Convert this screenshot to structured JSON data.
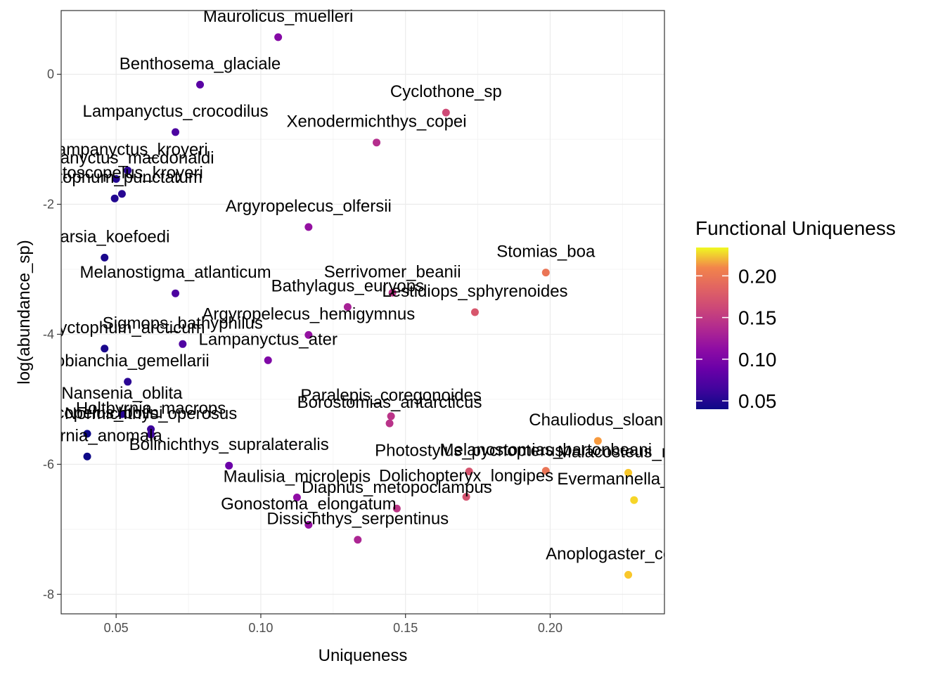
{
  "chart_data": {
    "type": "scatter",
    "xlabel": "Uniqueness",
    "ylabel": "log(abundance_sp)",
    "xlim": [
      0.031,
      0.2395
    ],
    "ylim": [
      -8.3,
      0.98
    ],
    "xticks": [
      0.05,
      0.1,
      0.15,
      0.2
    ],
    "xtick_labels": [
      "0.05",
      "0.10",
      "0.15",
      "0.20"
    ],
    "yticks": [
      -8,
      -6,
      -4,
      -2,
      0
    ],
    "ytick_labels": [
      "-8",
      "-6",
      "-4",
      "-2",
      "0"
    ],
    "grid": true,
    "legend": {
      "title": "Functional Uniqueness",
      "placement": "right",
      "ticks": [
        0.05,
        0.1,
        0.15,
        0.2
      ],
      "tick_labels": [
        "0.05",
        "0.10",
        "0.15",
        "0.20"
      ],
      "range": [
        0.04,
        0.234
      ]
    },
    "points": [
      {
        "label": "Maurolicus_muelleri",
        "x": 0.106,
        "y": 0.57,
        "color_value": 0.106
      },
      {
        "label": "Benthosema_glaciale",
        "x": 0.079,
        "y": -0.16,
        "color_value": 0.079
      },
      {
        "label": "Cyclothone_sp",
        "x": 0.164,
        "y": -0.59,
        "color_value": 0.164
      },
      {
        "label": "Lampanyctus_crocodilus",
        "x": 0.0705,
        "y": -0.89,
        "color_value": 0.0705
      },
      {
        "label": "Xenodermichthys_copei",
        "x": 0.14,
        "y": -1.05,
        "color_value": 0.14
      },
      {
        "label": "Lampanyctus_kroyeri",
        "x": 0.054,
        "y": -1.48,
        "color_value": 0.054
      },
      {
        "label": "Lampanyctus_macdonaldi",
        "x": 0.05,
        "y": -1.61,
        "color_value": 0.05
      },
      {
        "label": "Myctophum_punctatum",
        "x": 0.0495,
        "y": -1.91,
        "color_value": 0.0495
      },
      {
        "label": "Notoscopelus_kroyeri",
        "x": 0.052,
        "y": -1.84,
        "color_value": 0.052
      },
      {
        "label": "Argyropelecus_olfersii",
        "x": 0.1165,
        "y": -2.35,
        "color_value": 0.1165
      },
      {
        "label": "Searsia_koefoedi",
        "x": 0.046,
        "y": -2.82,
        "color_value": 0.046
      },
      {
        "label": "Stomias_boa",
        "x": 0.1985,
        "y": -3.05,
        "color_value": 0.1985
      },
      {
        "label": "Melanostigma_atlanticum",
        "x": 0.0705,
        "y": -3.37,
        "color_value": 0.0705
      },
      {
        "label": "Serrivomer_beanii",
        "x": 0.1455,
        "y": -3.36,
        "color_value": 0.1455
      },
      {
        "label": "Bathylagus_euryops",
        "x": 0.13,
        "y": -3.58,
        "color_value": 0.13
      },
      {
        "label": "Lestidiops_sphyrenoides",
        "x": 0.174,
        "y": -3.66,
        "color_value": 0.174
      },
      {
        "label": "Argyropelecus_hemigymnus",
        "x": 0.1165,
        "y": -4.01,
        "color_value": 0.1165
      },
      {
        "label": "Sigmops_bathyphilus",
        "x": 0.073,
        "y": -4.15,
        "color_value": 0.073
      },
      {
        "label": "Protomyctophum_arcticum",
        "x": 0.046,
        "y": -4.22,
        "color_value": 0.046
      },
      {
        "label": "Lampanyctus_ater",
        "x": 0.1025,
        "y": -4.4,
        "color_value": 0.1025
      },
      {
        "label": "Lobianchia_gemellarii",
        "x": 0.054,
        "y": -4.73,
        "color_value": 0.054
      },
      {
        "label": "Nansenia_oblita",
        "x": 0.052,
        "y": -5.23,
        "color_value": 0.052
      },
      {
        "label": "Paralepis_coregonoides",
        "x": 0.145,
        "y": -5.26,
        "color_value": 0.145
      },
      {
        "label": "Borostomias_antarcticus",
        "x": 0.1445,
        "y": -5.37,
        "color_value": 0.1445
      },
      {
        "label": "Holtbyrnia_macrops",
        "x": 0.062,
        "y": -5.46,
        "color_value": 0.062
      },
      {
        "label": "Normichthys_operosus",
        "x": 0.062,
        "y": -5.54,
        "color_value": 0.062
      },
      {
        "label": "Chauliodus_sloani",
        "x": 0.2165,
        "y": -5.64,
        "color_value": 0.2165
      },
      {
        "label": "Notoscopelus_bolini",
        "x": 0.04,
        "y": -5.53,
        "color_value": 0.04
      },
      {
        "label": "Holtbyrnia_anomala",
        "x": 0.04,
        "y": -5.88,
        "color_value": 0.04
      },
      {
        "label": "Bolinichthys_supralateralis",
        "x": 0.089,
        "y": -6.02,
        "color_value": 0.089
      },
      {
        "label": "Photostylus_pycnopterus",
        "x": 0.172,
        "y": -6.11,
        "color_value": 0.172
      },
      {
        "label": "Melanostomias_bartonbeani",
        "x": 0.1985,
        "y": -6.1,
        "color_value": 0.1985
      },
      {
        "label": "Malacosteus_niger",
        "x": 0.227,
        "y": -6.13,
        "color_value": 0.227
      },
      {
        "label": "Evermannella_balbo",
        "x": 0.229,
        "y": -6.55,
        "color_value": 0.229
      },
      {
        "label": "Dolichopteryx_longipes",
        "x": 0.171,
        "y": -6.5,
        "color_value": 0.171
      },
      {
        "label": "Maulisia_microlepis",
        "x": 0.1125,
        "y": -6.51,
        "color_value": 0.1125
      },
      {
        "label": "Diaphus_metopoclampus",
        "x": 0.147,
        "y": -6.68,
        "color_value": 0.147
      },
      {
        "label": "Gonostoma_elongatum",
        "x": 0.1165,
        "y": -6.93,
        "color_value": 0.1165
      },
      {
        "label": "Dissichthys_serpentinus",
        "x": 0.1335,
        "y": -7.16,
        "color_value": 0.1335
      },
      {
        "label": "Anoplogaster_cornuta",
        "x": 0.227,
        "y": -7.7,
        "color_value": 0.227
      }
    ]
  }
}
